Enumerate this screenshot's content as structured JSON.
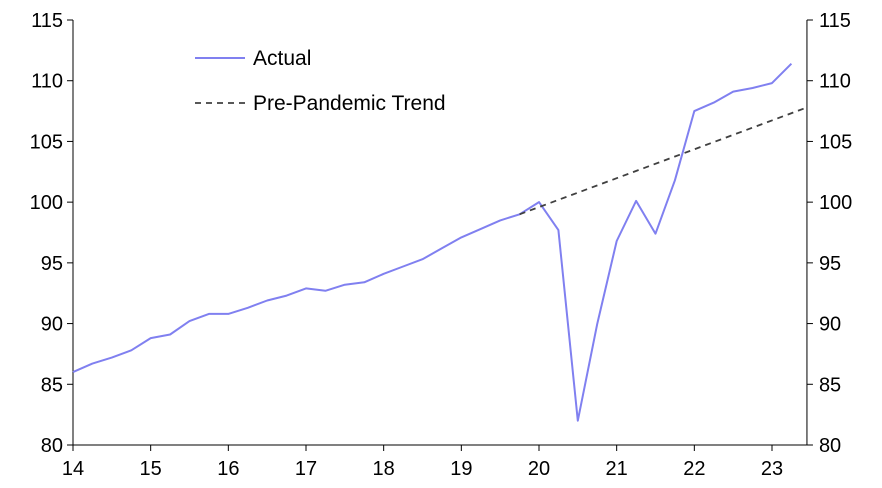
{
  "chart_data": {
    "type": "line",
    "title": "",
    "xlabel": "",
    "ylabel": "",
    "xlim": [
      14,
      23.45
    ],
    "ylim": [
      80,
      115
    ],
    "y_ticks": [
      80,
      85,
      90,
      95,
      100,
      105,
      110,
      115
    ],
    "x_ticks": [
      14,
      15,
      16,
      17,
      18,
      19,
      20,
      21,
      22,
      23
    ],
    "y_tick_labels": [
      "80",
      "85",
      "90",
      "95",
      "100",
      "105",
      "110",
      "115"
    ],
    "x_tick_labels": [
      "14",
      "15",
      "16",
      "17",
      "18",
      "19",
      "20",
      "21",
      "22",
      "23"
    ],
    "grid": false,
    "legend_position": "top-left",
    "series": [
      {
        "name": "Actual",
        "color": "#8080f0",
        "style": "solid",
        "x": [
          14.0,
          14.25,
          14.5,
          14.75,
          15.0,
          15.25,
          15.5,
          15.75,
          16.0,
          16.25,
          16.5,
          16.75,
          17.0,
          17.25,
          17.5,
          17.75,
          18.0,
          18.25,
          18.5,
          18.75,
          19.0,
          19.25,
          19.5,
          19.75,
          20.0,
          20.25,
          20.5,
          20.75,
          21.0,
          21.25,
          21.5,
          21.75,
          22.0,
          22.25,
          22.5,
          22.75,
          23.0,
          23.25
        ],
        "y": [
          86.0,
          86.7,
          87.2,
          87.8,
          88.8,
          89.1,
          90.2,
          90.8,
          90.8,
          91.3,
          91.9,
          92.3,
          92.9,
          92.7,
          93.2,
          93.4,
          94.1,
          94.7,
          95.3,
          96.2,
          97.1,
          97.8,
          98.5,
          99.0,
          100.0,
          97.7,
          82.0,
          90.0,
          96.8,
          100.1,
          97.4,
          101.8,
          107.5,
          108.2,
          109.1,
          109.4,
          109.8,
          111.4
        ]
      },
      {
        "name": "Pre-Pandemic Trend",
        "color": "#404040",
        "style": "dashed",
        "x": [
          19.75,
          23.45
        ],
        "y": [
          99.0,
          107.8
        ]
      }
    ]
  }
}
